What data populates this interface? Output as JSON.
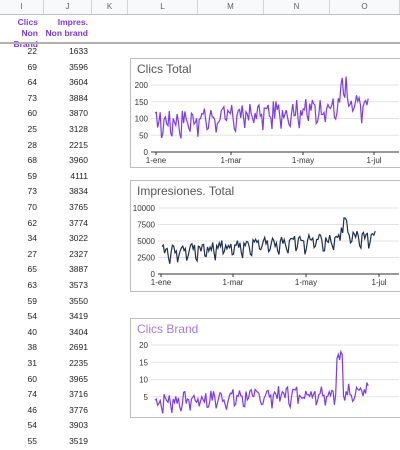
{
  "columns": [
    "I",
    "J",
    "K",
    "L",
    "M",
    "N",
    "O"
  ],
  "table": {
    "headers": {
      "col_i": "Clics Non Brand",
      "col_j": "Impres. Non brand"
    },
    "rows": [
      [
        "22",
        "1633"
      ],
      [
        "69",
        "3596"
      ],
      [
        "64",
        "3604"
      ],
      [
        "73",
        "3884"
      ],
      [
        "60",
        "3870"
      ],
      [
        "25",
        "3128"
      ],
      [
        "28",
        "2215"
      ],
      [
        "68",
        "3960"
      ],
      [
        "59",
        "4111"
      ],
      [
        "73",
        "3834"
      ],
      [
        "70",
        "3765"
      ],
      [
        "62",
        "3774"
      ],
      [
        "34",
        "3022"
      ],
      [
        "27",
        "2327"
      ],
      [
        "65",
        "3887"
      ],
      [
        "63",
        "3573"
      ],
      [
        "59",
        "3550"
      ],
      [
        "54",
        "3419"
      ],
      [
        "40",
        "3404"
      ],
      [
        "38",
        "2691"
      ],
      [
        "31",
        "2235"
      ],
      [
        "60",
        "3965"
      ],
      [
        "74",
        "3716"
      ],
      [
        "46",
        "3776"
      ],
      [
        "54",
        "3903"
      ],
      [
        "55",
        "3519"
      ]
    ]
  },
  "charts": [
    {
      "title": "Clics Total",
      "title_color": "#555555",
      "line_color": "#7c3aed",
      "y_ticks": [
        "200",
        "150",
        "100",
        "50",
        "0"
      ],
      "x_ticks": [
        "1-ene",
        "1-mar",
        "1-may",
        "1-jul"
      ]
    },
    {
      "title": "Impresiones. Total",
      "title_color": "#555555",
      "line_color": "#1e2f50",
      "y_ticks": [
        "10000",
        "7500",
        "5000",
        "2500",
        "0"
      ],
      "x_ticks": [
        "1-ene",
        "1-mar",
        "1-may",
        "1-jul"
      ]
    },
    {
      "title": "Clics Brand",
      "title_color": "#9f7aea",
      "line_color": "#7c3aed",
      "y_ticks": [
        "20",
        "15",
        "10",
        "5"
      ],
      "x_ticks": []
    }
  ]
}
